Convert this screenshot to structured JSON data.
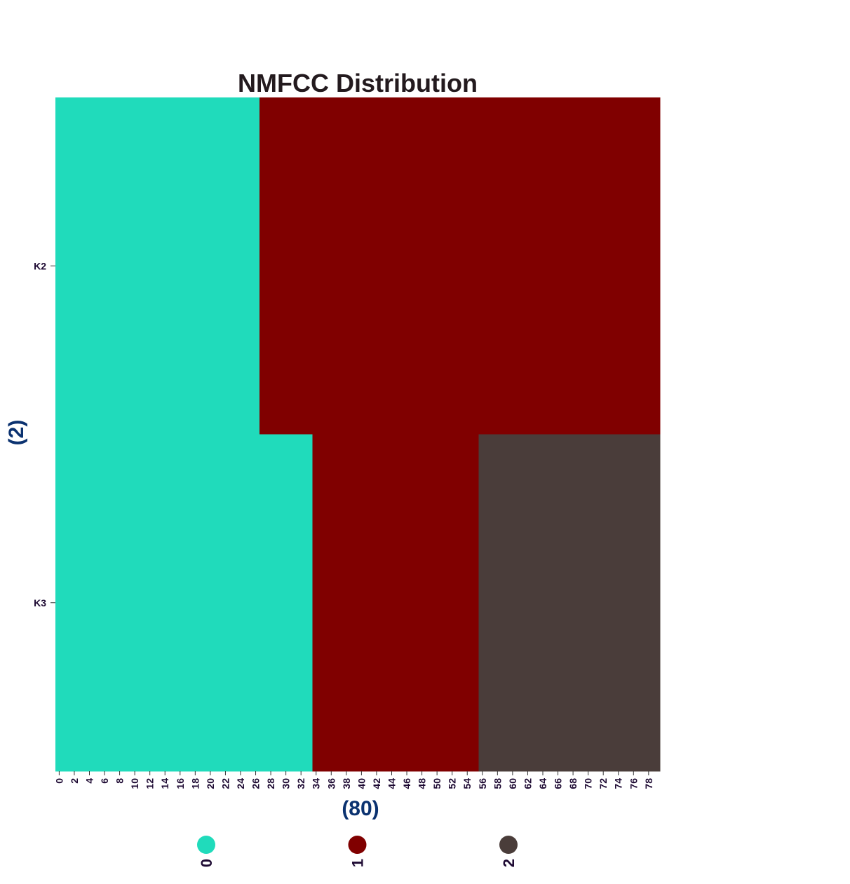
{
  "chart_data": {
    "type": "heatmap",
    "title": "NMFCC Distribution",
    "xlabel": "(80)",
    "ylabel": "(2)",
    "n_columns": 80,
    "x_tick_labels": [
      "0",
      "2",
      "4",
      "6",
      "8",
      "10",
      "12",
      "14",
      "16",
      "18",
      "20",
      "22",
      "24",
      "26",
      "28",
      "30",
      "32",
      "34",
      "36",
      "38",
      "40",
      "42",
      "44",
      "46",
      "48",
      "50",
      "52",
      "54",
      "56",
      "58",
      "60",
      "62",
      "64",
      "66",
      "68",
      "70",
      "72",
      "74",
      "76",
      "78"
    ],
    "rows": [
      {
        "label": "K2",
        "segments": [
          {
            "category": "0",
            "start": 0,
            "end": 27
          },
          {
            "category": "1",
            "start": 27,
            "end": 80
          }
        ]
      },
      {
        "label": "K3",
        "segments": [
          {
            "category": "0",
            "start": 0,
            "end": 34
          },
          {
            "category": "1",
            "start": 34,
            "end": 56
          },
          {
            "category": "2",
            "start": 56,
            "end": 80
          }
        ]
      }
    ],
    "categories": [
      {
        "label": "0",
        "color": "#20dbbb"
      },
      {
        "label": "1",
        "color": "#800000"
      },
      {
        "label": "2",
        "color": "#4a3d3a"
      }
    ],
    "legend_position": "bottom",
    "grid": false
  },
  "colors": {
    "title": "#231a1e",
    "tick_text": "#1e0a33",
    "axis_label": "#0b3270"
  }
}
